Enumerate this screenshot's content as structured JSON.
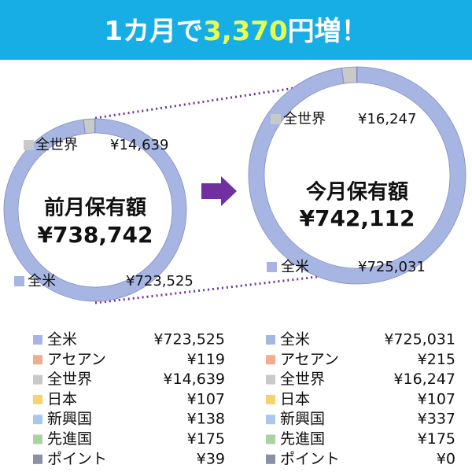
{
  "header": {
    "title_parts": [
      "1カ月で",
      "3,370",
      "円増！"
    ]
  },
  "chart_data": [
    {
      "type": "pie",
      "center_label": "前月保有額",
      "total_label": "¥738,742",
      "categories": [
        "全米",
        "アセアン",
        "全世界",
        "日本",
        "新興国",
        "先進国",
        "ポイント"
      ],
      "values": [
        723525,
        119,
        14639,
        107,
        138,
        175,
        39
      ],
      "value_labels": [
        "¥723,525",
        "¥119",
        "¥14,639",
        "¥107",
        "¥138",
        "¥175",
        "¥39"
      ],
      "colors": [
        "#a7b5e2",
        "#f0ae8e",
        "#c9c9c9",
        "#f9d26e",
        "#a9c8ea",
        "#a9d3a0",
        "#8b90a6"
      ]
    },
    {
      "type": "pie",
      "center_label": "今月保有額",
      "total_label": "¥742,112",
      "categories": [
        "全米",
        "アセアン",
        "全世界",
        "日本",
        "新興国",
        "先進国",
        "ポイント"
      ],
      "values": [
        725031,
        215,
        16247,
        107,
        337,
        175,
        0
      ],
      "value_labels": [
        "¥725,031",
        "¥215",
        "¥16,247",
        "¥107",
        "¥337",
        "¥175",
        "¥0"
      ],
      "colors": [
        "#a7b5e2",
        "#f0ae8e",
        "#c9c9c9",
        "#f9d26e",
        "#a9c8ea",
        "#a9d3a0",
        "#8b90a6"
      ]
    }
  ]
}
